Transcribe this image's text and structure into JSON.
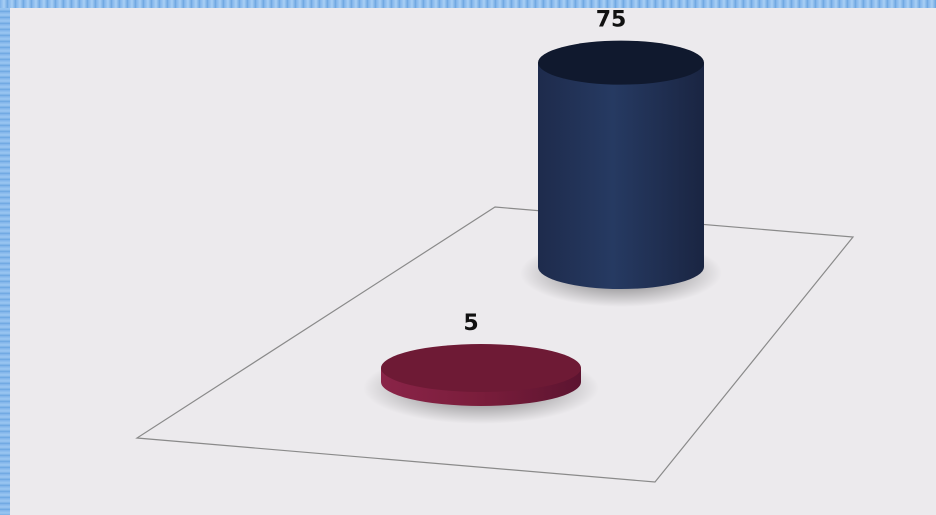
{
  "chart_data": {
    "type": "bar",
    "style": "3d-cylinder",
    "categories": [
      "",
      ""
    ],
    "values": [
      5,
      75
    ],
    "title": "",
    "xlabel": "",
    "ylabel": "",
    "ylim": [
      0,
      80
    ],
    "grid": false,
    "legend": "none",
    "colors": [
      "#7a1d3b",
      "#243358"
    ],
    "data_labels": [
      "5",
      "75"
    ]
  }
}
